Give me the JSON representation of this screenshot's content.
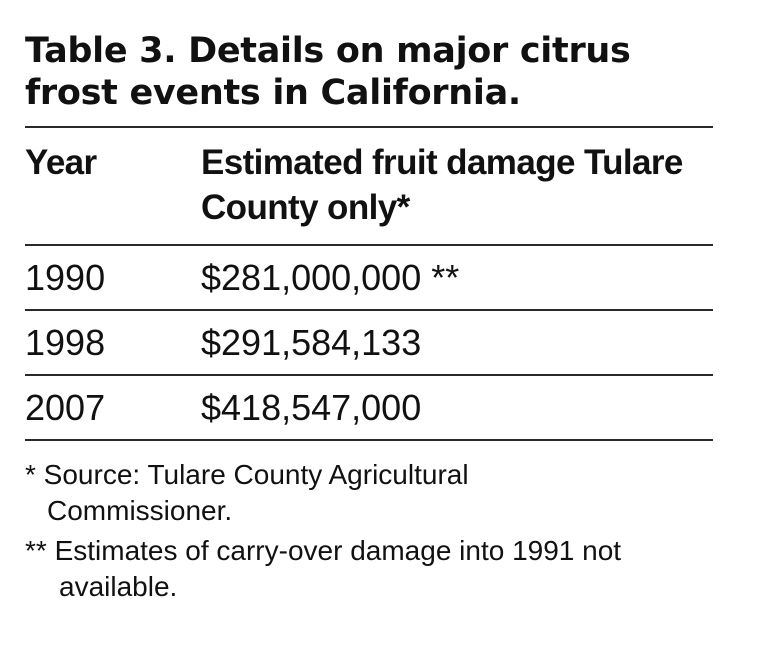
{
  "table": {
    "title": "Table 3. Details on major citrus frost events in California.",
    "columns": [
      "Year",
      "Estimated fruit damage Tulare County only*"
    ],
    "rows": [
      {
        "year": "1990",
        "damage": "$281,000,000 **"
      },
      {
        "year": "1998",
        "damage": "$291,584,133"
      },
      {
        "year": "2007",
        "damage": "$418,547,000"
      }
    ]
  },
  "footnotes": [
    "* Source: Tulare County Agricultural Commissioner.",
    "** Estimates of carry-over damage into 1991 not available."
  ]
}
